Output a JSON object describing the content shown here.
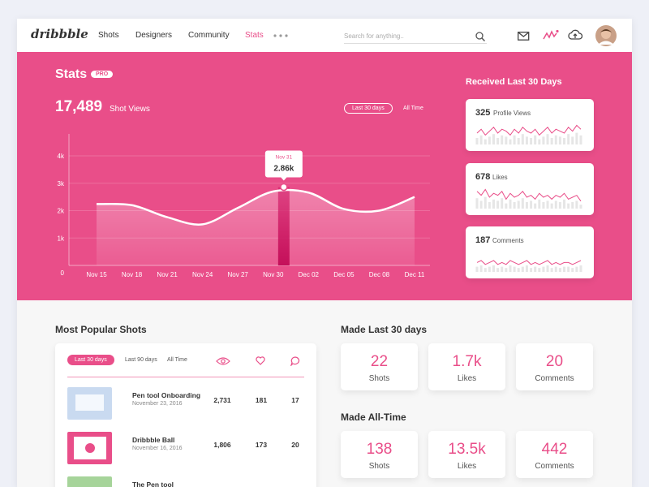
{
  "nav": {
    "logo": "dribbble",
    "links": [
      "Shots",
      "Designers",
      "Community",
      "Stats"
    ],
    "search_placeholder": "Search for anything.."
  },
  "header": {
    "title": "Stats",
    "badge": "PRO",
    "total": "17,489",
    "total_label": "Shot Views",
    "ranges": [
      "Last 30 days",
      "All Time"
    ]
  },
  "chart_data": {
    "type": "area",
    "categories": [
      "Nov 15",
      "Nov 18",
      "Nov 21",
      "Nov 24",
      "Nov 27",
      "Nov 30",
      "Dec 02",
      "Dec 05",
      "Dec 08",
      "Dec 11"
    ],
    "values": [
      2240,
      2200,
      1760,
      1500,
      2100,
      2700,
      2660,
      2060,
      2000,
      2500
    ],
    "color": "#ffffff",
    "ylim": [
      0,
      4800
    ],
    "yticks": [
      0,
      {
        "value": 1000,
        "label": "1k"
      },
      {
        "value": 2000,
        "label": "2k"
      },
      {
        "value": 3000,
        "label": "3k"
      },
      {
        "value": 4000,
        "label": "4k"
      }
    ],
    "grid": true,
    "tooltip": {
      "label": "Nov 31",
      "value": 2860,
      "value_label": "2.86k"
    }
  },
  "received": {
    "title": "Received Last 30 Days",
    "cards": [
      {
        "count": "325",
        "label": "Profile Views",
        "values": [
          5,
          7,
          4,
          6,
          8,
          5,
          7,
          6,
          4,
          7,
          5,
          8,
          6,
          5,
          7,
          4,
          6,
          8,
          5,
          7,
          6,
          5,
          8,
          6,
          9,
          7
        ]
      },
      {
        "count": "678",
        "label": "Likes",
        "values": [
          8,
          6,
          9,
          5,
          7,
          6,
          8,
          4,
          7,
          5,
          6,
          8,
          5,
          6,
          4,
          7,
          5,
          6,
          4,
          6,
          5,
          7,
          4,
          5,
          6,
          3
        ]
      },
      {
        "count": "187",
        "label": "Comments",
        "values": [
          4,
          5,
          3,
          4,
          5,
          3,
          4,
          3,
          5,
          4,
          3,
          4,
          5,
          3,
          4,
          3,
          4,
          5,
          3,
          4,
          3,
          4,
          4,
          3,
          4,
          5
        ]
      }
    ]
  },
  "popular": {
    "title": "Most Popular Shots",
    "filters": [
      "Last 30 days",
      "Last 90 days",
      "All Time"
    ],
    "rows": [
      {
        "title": "Pen tool Onboarding",
        "date": "November 23, 2016",
        "views": "2,731",
        "likes": "181",
        "comments": "17"
      },
      {
        "title": "Dribbble Ball",
        "date": "November 16, 2016",
        "views": "1,806",
        "likes": "173",
        "comments": "20"
      },
      {
        "title": "The Pen tool"
      }
    ]
  },
  "made_30": {
    "title": "Made Last 30 days",
    "stats": [
      {
        "value": "22",
        "label": "Shots"
      },
      {
        "value": "1.7k",
        "label": "Likes"
      },
      {
        "value": "20",
        "label": "Comments"
      }
    ]
  },
  "made_all": {
    "title": "Made All-Time",
    "stats": [
      {
        "value": "138",
        "label": "Shots"
      },
      {
        "value": "13.5k",
        "label": "Likes"
      },
      {
        "value": "442",
        "label": "Comments"
      }
    ]
  }
}
